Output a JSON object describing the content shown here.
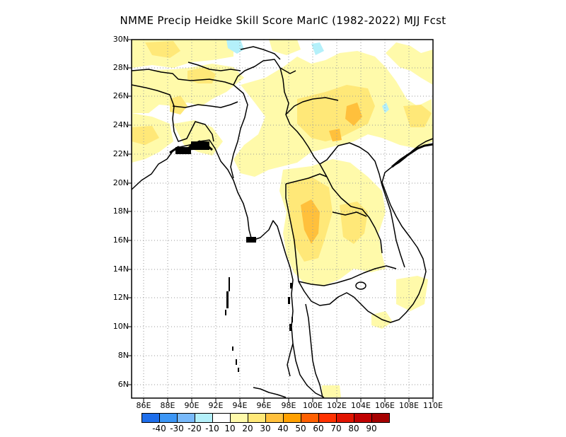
{
  "title": "NMME Precip Heidke Skill Score MarIC (1982-2022) MJJ Fcst",
  "map": {
    "region": "Southeast Asia / Indochina",
    "lat_range": [
      5,
      30
    ],
    "lon_range": [
      85,
      110
    ],
    "lat_labels": [
      "30N",
      "28N",
      "26N",
      "24N",
      "22N",
      "20N",
      "18N",
      "16N",
      "14N",
      "12N",
      "10N",
      "8N",
      "6N"
    ],
    "lon_labels": [
      "86E",
      "88E",
      "90E",
      "92E",
      "94E",
      "96E",
      "98E",
      "100E",
      "102E",
      "104E",
      "106E",
      "108E",
      "110E"
    ],
    "gridlines": "dotted",
    "ocean_color": "#ffffff",
    "land_color": "#ffffff",
    "coastline_color": "#000000"
  },
  "colorbar": {
    "colors": [
      "#1e6eeb",
      "#3c96f5",
      "#78b9fa",
      "#b4f0fa",
      "#ffffff",
      "#fffaaa",
      "#ffe878",
      "#ffc03c",
      "#ffa000",
      "#ff6000",
      "#ff3200",
      "#e11400",
      "#c00000",
      "#a50000"
    ],
    "labels": [
      "-40",
      "-30",
      "-20",
      "-10",
      "10",
      "20",
      "30",
      "40",
      "50",
      "60",
      "70",
      "80",
      "90"
    ]
  },
  "skill_colors": {
    "10-20": "#fffaaa",
    "20-30": "#ffe878",
    "30-40": "#ffc03c",
    "negative": "#b4f0fa"
  }
}
